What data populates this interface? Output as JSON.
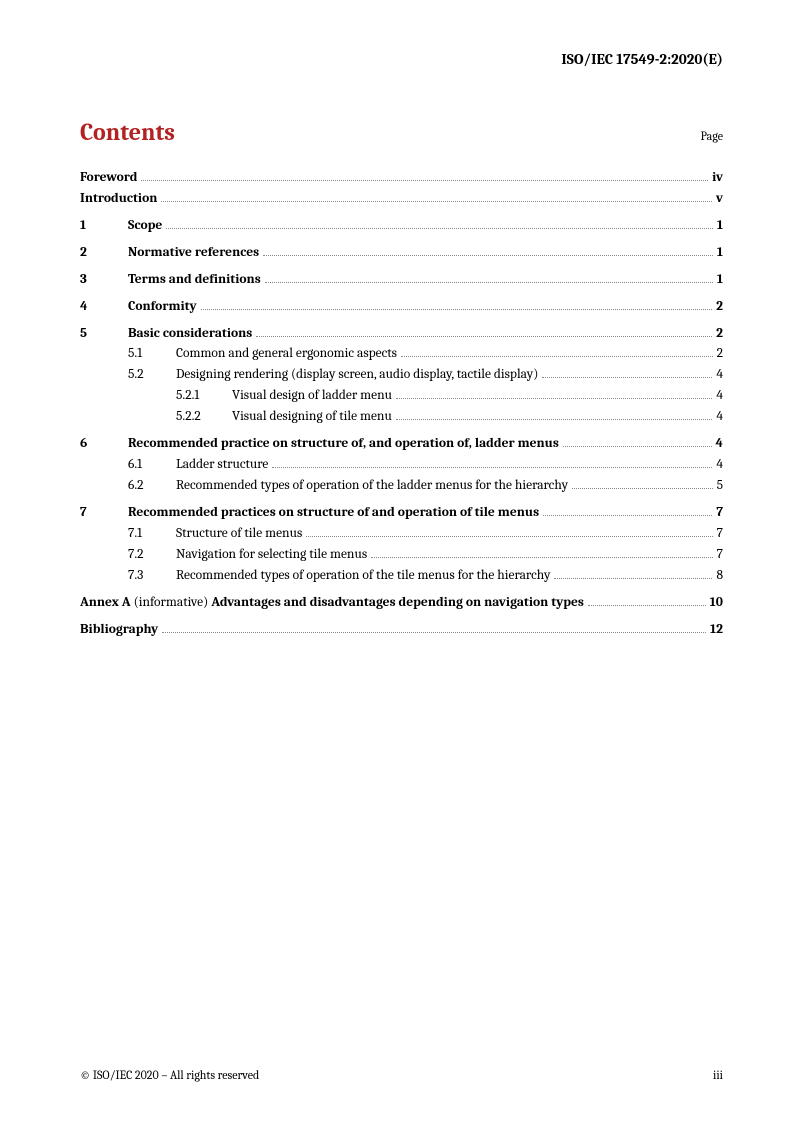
{
  "header": {
    "doc_id": "ISO/IEC 17549-2:2020(E)"
  },
  "title": "Contents",
  "page_label": "Page",
  "toc": {
    "foreword": {
      "text": "Foreword",
      "page": "iv"
    },
    "introduction": {
      "text": "Introduction",
      "page": "v"
    },
    "s1": {
      "num": "1",
      "text": "Scope",
      "page": "1"
    },
    "s2": {
      "num": "2",
      "text": "Normative references",
      "page": "1"
    },
    "s3": {
      "num": "3",
      "text": "Terms and definitions",
      "page": "1"
    },
    "s4": {
      "num": "4",
      "text": "Conformity",
      "page": "2"
    },
    "s5": {
      "num": "5",
      "text": "Basic considerations",
      "page": "2"
    },
    "s5_1": {
      "num": "5.1",
      "text": "Common and general ergonomic aspects",
      "page": "2"
    },
    "s5_2": {
      "num": "5.2",
      "text": "Designing rendering (display screen, audio display, tactile display)",
      "page": "4"
    },
    "s5_2_1": {
      "num": "5.2.1",
      "text": "Visual design of ladder menu",
      "page": "4"
    },
    "s5_2_2": {
      "num": "5.2.2",
      "text": "Visual designing of tile menu",
      "page": "4"
    },
    "s6": {
      "num": "6",
      "text": "Recommended practice on structure of, and operation of, ladder menus",
      "page": "4"
    },
    "s6_1": {
      "num": "6.1",
      "text": "Ladder structure",
      "page": "4"
    },
    "s6_2": {
      "num": "6.2",
      "text": "Recommended types of operation of the ladder menus for the hierarchy",
      "page": "5"
    },
    "s7": {
      "num": "7",
      "text": "Recommended practices on structure of and operation of tile menus",
      "page": "7"
    },
    "s7_1": {
      "num": "7.1",
      "text": "Structure of tile menus",
      "page": "7"
    },
    "s7_2": {
      "num": "7.2",
      "text": "Navigation for selecting tile menus",
      "page": "7"
    },
    "s7_3": {
      "num": "7.3",
      "text": "Recommended types of operation of the tile menus for the hierarchy",
      "page": "8"
    },
    "annexA": {
      "prefix": "Annex A",
      "info": " (informative) ",
      "text": "Advantages and disadvantages depending on navigation types",
      "page": "10"
    },
    "bibliography": {
      "text": "Bibliography",
      "page": "12"
    }
  },
  "footer": {
    "copyright": "© ISO/IEC 2020 – All rights reserved",
    "page_num": "iii"
  }
}
